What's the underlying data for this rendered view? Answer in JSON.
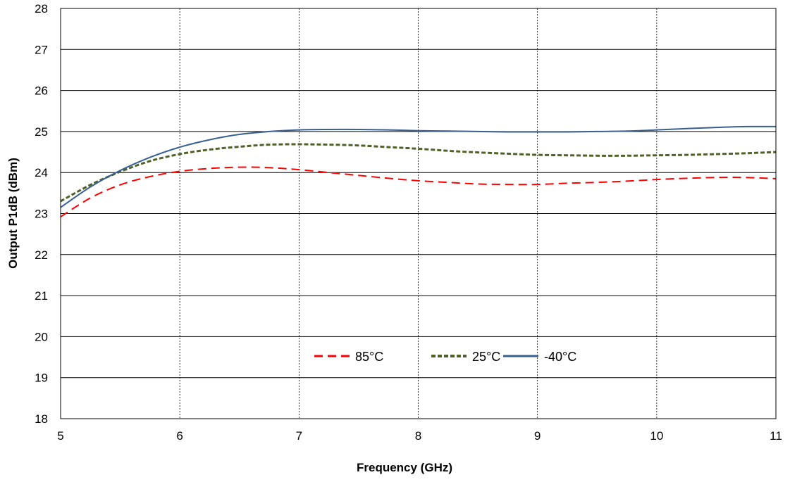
{
  "chart_data": {
    "type": "line",
    "xlabel": "Frequency (GHz)",
    "ylabel": "Output P1dB (dBm)",
    "xlim": [
      5,
      11
    ],
    "ylim": [
      18,
      28
    ],
    "xticks": [
      5,
      6,
      7,
      8,
      9,
      10,
      11
    ],
    "yticks": [
      18,
      19,
      20,
      21,
      22,
      23,
      24,
      25,
      26,
      27,
      28
    ],
    "grid": {
      "horizontal": "solid",
      "vertical": "dashed"
    },
    "legend_position": "bottom-center",
    "series": [
      {
        "name": "85°C",
        "color": "#ff0000",
        "style": "dashed",
        "x": [
          5,
          5.25,
          5.5,
          5.75,
          6,
          6.25,
          6.5,
          6.75,
          7,
          7.25,
          7.5,
          7.75,
          8,
          8.25,
          8.5,
          8.75,
          9,
          9.25,
          9.5,
          9.75,
          10,
          10.25,
          10.5,
          10.75,
          11
        ],
        "y": [
          22.92,
          23.38,
          23.7,
          23.9,
          24.03,
          24.1,
          24.13,
          24.12,
          24.07,
          24.0,
          23.93,
          23.86,
          23.8,
          23.76,
          23.72,
          23.71,
          23.71,
          23.74,
          23.76,
          23.79,
          23.83,
          23.86,
          23.88,
          23.88,
          23.85
        ]
      },
      {
        "name": "25°C",
        "color": "#4f6228",
        "style": "dashed",
        "x": [
          5,
          5.25,
          5.5,
          5.75,
          6,
          6.25,
          6.5,
          6.75,
          7,
          7.25,
          7.5,
          7.75,
          8,
          8.25,
          8.5,
          8.75,
          9,
          9.25,
          9.5,
          9.75,
          10,
          10.25,
          10.5,
          10.75,
          11
        ],
        "y": [
          23.3,
          23.7,
          24.02,
          24.28,
          24.45,
          24.56,
          24.63,
          24.68,
          24.69,
          24.68,
          24.66,
          24.62,
          24.58,
          24.53,
          24.49,
          24.46,
          24.43,
          24.42,
          24.41,
          24.41,
          24.42,
          24.43,
          24.45,
          24.47,
          24.5
        ]
      },
      {
        "name": "-40°C",
        "color": "#376092",
        "style": "solid",
        "x": [
          5,
          5.25,
          5.5,
          5.75,
          6,
          6.25,
          6.5,
          6.75,
          7,
          7.25,
          7.5,
          7.75,
          8,
          8.25,
          8.5,
          8.75,
          9,
          9.25,
          9.5,
          9.75,
          10,
          10.25,
          10.5,
          10.75,
          11
        ],
        "y": [
          23.15,
          23.65,
          24.05,
          24.37,
          24.62,
          24.8,
          24.93,
          25.0,
          25.04,
          25.05,
          25.05,
          25.04,
          25.02,
          25.01,
          25.0,
          24.99,
          24.99,
          24.99,
          25.0,
          25.01,
          25.04,
          25.07,
          25.1,
          25.12,
          25.12
        ]
      }
    ]
  }
}
